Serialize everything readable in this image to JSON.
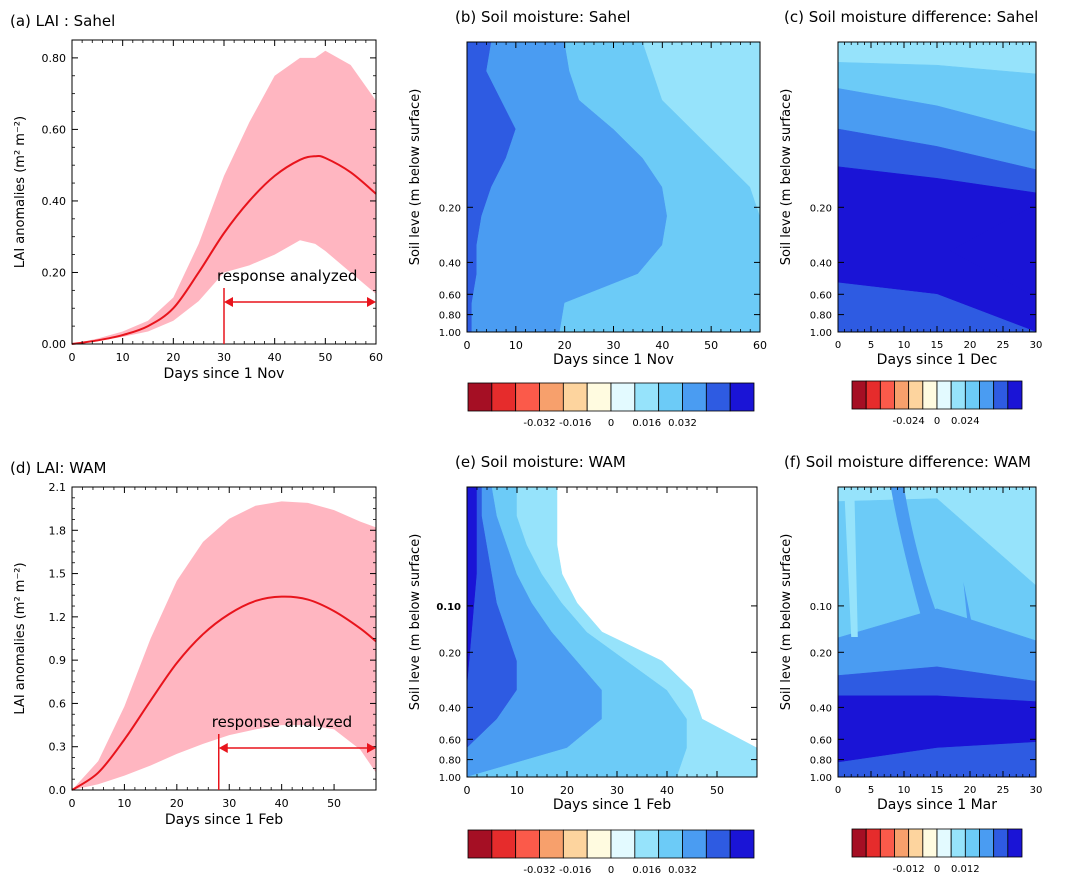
{
  "colors": {
    "band": "#ffb6c1",
    "mean_line": "#e8141c",
    "arrow": "#e8141c",
    "palette": [
      "#a50f24",
      "#e62c2c",
      "#fb5a4a",
      "#f7a06c",
      "#fdd49e",
      "#fffbe0",
      "#e3faff",
      "#96e3fb",
      "#6ccbf7",
      "#4a9cf2",
      "#2e5be2",
      "#1a14d6"
    ]
  },
  "chart_data": [
    {
      "id": "a",
      "type": "area",
      "title": "(a) LAI : Sahel",
      "xlabel": "Days since 1 Nov",
      "ylabel": "LAI anomalies (m² m⁻²)",
      "xlim": [
        0,
        60
      ],
      "ylim": [
        0,
        0.85
      ],
      "xticks": [
        0,
        10,
        20,
        30,
        40,
        50,
        60
      ],
      "xtick_labels": [
        "0",
        "10",
        "20",
        "30",
        "40",
        "50",
        "60"
      ],
      "yticks": [
        0,
        0.2,
        0.4,
        0.6,
        0.8
      ],
      "ytick_labels": [
        "0.00",
        "0.20",
        "0.40",
        "0.60",
        "0.80"
      ],
      "x": [
        0,
        5,
        10,
        15,
        20,
        25,
        30,
        35,
        40,
        45,
        48,
        50,
        55,
        60
      ],
      "mean": [
        0,
        0.01,
        0.025,
        0.05,
        0.1,
        0.2,
        0.31,
        0.4,
        0.47,
        0.515,
        0.525,
        0.52,
        0.48,
        0.42
      ],
      "lower": [
        0,
        0.008,
        0.02,
        0.035,
        0.065,
        0.12,
        0.2,
        0.22,
        0.25,
        0.29,
        0.28,
        0.26,
        0.2,
        0.14
      ],
      "upper": [
        0,
        0.015,
        0.035,
        0.065,
        0.13,
        0.28,
        0.47,
        0.62,
        0.75,
        0.8,
        0.8,
        0.82,
        0.78,
        0.68
      ],
      "annotation": "response analyzed",
      "response_range": [
        30,
        60
      ],
      "response_level": 0.075
    },
    {
      "id": "b",
      "type": "heatmap",
      "title": "(b) Soil moisture: Sahel",
      "xlabel": "Days since 1 Nov",
      "ylabel": "Soil leve (m below surface)",
      "xlim": [
        0,
        60
      ],
      "xticks": [
        0,
        10,
        20,
        30,
        40,
        50,
        60
      ],
      "xtick_labels": [
        "0",
        "10",
        "20",
        "30",
        "40",
        "50",
        "60"
      ],
      "ytick_labels": [
        "0.20",
        "0.40",
        "0.60",
        "0.80",
        "1.00"
      ],
      "depth_levels": [
        0.2,
        0.4,
        0.6,
        0.8,
        1.0
      ],
      "colorbar": {
        "tick_labels": [
          "-0.032",
          "-0.016",
          "0",
          "0.016",
          "0.032"
        ]
      },
      "bands": [
        {
          "level_index": 10,
          "lo_x": [
            0,
            0,
            0,
            0,
            0,
            0,
            0,
            0,
            0,
            0,
            0
          ],
          "hi_x": [
            5,
            4,
            7,
            10,
            8,
            5,
            3,
            2,
            2,
            1,
            1
          ]
        },
        {
          "level_index": 9,
          "lo_x": [
            5,
            4,
            7,
            10,
            8,
            5,
            3,
            2,
            2,
            1,
            1
          ],
          "hi_x": [
            20,
            21,
            23,
            30,
            36,
            40,
            41,
            40,
            35,
            20,
            19
          ]
        },
        {
          "level_index": 8,
          "lo_x": [
            20,
            21,
            23,
            30,
            36,
            40,
            41,
            40,
            35,
            20,
            19
          ],
          "hi_x": [
            36,
            38,
            40,
            46,
            52,
            58,
            60,
            60,
            60,
            60,
            60
          ]
        },
        {
          "level_index": 7,
          "lo_x": [
            36,
            38,
            40,
            46,
            52,
            58,
            60,
            60,
            60,
            60,
            60
          ],
          "hi_x": [
            60,
            60,
            60,
            60,
            60,
            60,
            60,
            60,
            60,
            60,
            60
          ]
        }
      ],
      "depth_fractions": [
        0,
        0.1,
        0.2,
        0.3,
        0.4,
        0.5,
        0.6,
        0.7,
        0.8,
        0.9,
        1.0
      ]
    },
    {
      "id": "c",
      "type": "heatmap",
      "title": "(c) Soil moisture difference: Sahel",
      "xlabel": "Days since 1 Dec",
      "ylabel": "Soil leve (m below surface)",
      "xlim": [
        0,
        30
      ],
      "xticks": [
        0,
        5,
        10,
        15,
        20,
        25,
        30
      ],
      "xtick_labels": [
        "0",
        "5",
        "10",
        "15",
        "20",
        "25",
        "30"
      ],
      "ytick_labels": [
        "0.20",
        "0.40",
        "0.60",
        "0.80",
        "1.00"
      ],
      "depth_levels": [
        0.2,
        0.4,
        0.6,
        0.8,
        1.0
      ],
      "colorbar": {
        "tick_labels": [
          "-0.024",
          "0",
          "0.024"
        ]
      },
      "row_bands": [
        {
          "level_index": 7,
          "top": [
            0,
            0,
            0
          ],
          "bottom": [
            0.07,
            0.08,
            0.11
          ]
        },
        {
          "level_index": 8,
          "top": [
            0.07,
            0.08,
            0.11
          ],
          "bottom": [
            0.16,
            0.22,
            0.31
          ]
        },
        {
          "level_index": 9,
          "top": [
            0.16,
            0.22,
            0.31
          ],
          "bottom": [
            0.3,
            0.36,
            0.44
          ]
        },
        {
          "level_index": 10,
          "top": [
            0.3,
            0.36,
            0.44
          ],
          "bottom": [
            0.43,
            0.47,
            0.52
          ]
        },
        {
          "level_index": 11,
          "top": [
            0.43,
            0.47,
            0.52
          ],
          "bottom": [
            0.83,
            0.87,
            1.0
          ]
        },
        {
          "level_index": 10,
          "top": [
            0.83,
            0.87,
            1.0
          ],
          "bottom": [
            1.0,
            1.0,
            1.0
          ]
        }
      ],
      "wedge": {
        "level_index": 11,
        "x_start": 17,
        "x_end": 30,
        "center": 0.72,
        "half_width": 0.16
      }
    },
    {
      "id": "d",
      "type": "area",
      "title": "(d) LAI: WAM",
      "xlabel": "Days since 1 Feb",
      "ylabel": "LAI anomalies (m² m⁻²)",
      "xlim": [
        0,
        58
      ],
      "ylim": [
        0,
        2.1
      ],
      "xticks": [
        0,
        10,
        20,
        30,
        40,
        50
      ],
      "xtick_labels": [
        "0",
        "10",
        "20",
        "30",
        "40",
        "50"
      ],
      "yticks": [
        0,
        0.3,
        0.6,
        0.9,
        1.2,
        1.5,
        1.8,
        2.1
      ],
      "ytick_labels": [
        "0.0",
        "0.3",
        "0.6",
        "0.9",
        "1.2",
        "1.5",
        "1.8",
        "2.1"
      ],
      "x": [
        0,
        5,
        10,
        15,
        20,
        25,
        30,
        35,
        40,
        45,
        50,
        55,
        58
      ],
      "mean": [
        0,
        0.12,
        0.35,
        0.62,
        0.88,
        1.08,
        1.22,
        1.31,
        1.34,
        1.32,
        1.24,
        1.12,
        1.03
      ],
      "lower": [
        0,
        0.04,
        0.1,
        0.17,
        0.25,
        0.32,
        0.38,
        0.42,
        0.45,
        0.45,
        0.42,
        0.28,
        0.12
      ],
      "upper": [
        0,
        0.2,
        0.58,
        1.05,
        1.45,
        1.72,
        1.88,
        1.97,
        2.0,
        1.99,
        1.94,
        1.86,
        1.82
      ],
      "annotation": "response analyzed",
      "response_range": [
        28,
        58
      ],
      "response_level": 0.045
    },
    {
      "id": "e",
      "type": "heatmap",
      "title": "(e) Soil moisture: WAM",
      "xlabel": "Days since 1 Feb",
      "ylabel": "Soil leve (m below surface)",
      "xlim": [
        0,
        58
      ],
      "xticks": [
        0,
        10,
        20,
        30,
        40,
        50
      ],
      "xtick_labels": [
        "0",
        "10",
        "20",
        "30",
        "40",
        "50"
      ],
      "ytick_labels": [
        "0.10",
        "0.20",
        "0.40",
        "0.60",
        "0.80",
        "1.00"
      ],
      "depth_levels": [
        0.1,
        0.2,
        0.4,
        0.6,
        0.8,
        1.0
      ],
      "colorbar": {
        "tick_labels": [
          "-0.032",
          "-0.016",
          "0",
          "0.016",
          "0.032"
        ]
      },
      "bands": [
        {
          "level_index": 11,
          "lo_x": [
            0,
            0,
            0,
            0,
            0,
            0,
            0,
            0,
            0,
            0,
            0
          ],
          "hi_x": [
            2,
            2,
            2,
            2,
            1.5,
            1,
            0.5,
            0,
            0,
            0,
            0
          ]
        },
        {
          "level_index": 10,
          "lo_x": [
            2,
            2,
            2,
            2,
            1.5,
            1,
            0.5,
            0,
            0,
            0,
            0
          ],
          "hi_x": [
            3,
            3,
            4,
            5,
            6,
            8,
            10,
            10,
            6,
            0,
            0
          ]
        },
        {
          "level_index": 9,
          "lo_x": [
            3,
            3,
            4,
            5,
            6,
            8,
            10,
            10,
            6,
            0,
            0
          ],
          "hi_x": [
            5,
            6,
            8,
            10,
            13,
            17,
            22,
            27,
            27,
            20,
            0
          ]
        },
        {
          "level_index": 8,
          "lo_x": [
            5,
            6,
            8,
            10,
            13,
            17,
            22,
            27,
            27,
            20,
            0
          ],
          "hi_x": [
            10,
            10,
            12,
            15,
            19,
            24,
            32,
            40,
            44,
            44,
            42
          ]
        },
        {
          "level_index": 7,
          "lo_x": [
            10,
            10,
            12,
            15,
            19,
            24,
            32,
            40,
            44,
            44,
            42
          ],
          "hi_x": [
            18,
            18,
            18,
            19,
            22,
            27,
            39,
            45,
            47,
            58,
            58
          ]
        }
      ],
      "depth_fractions": [
        0,
        0.1,
        0.2,
        0.3,
        0.4,
        0.5,
        0.6,
        0.7,
        0.8,
        0.9,
        1.0
      ]
    },
    {
      "id": "f",
      "type": "heatmap",
      "title": "(f) Soil moisture difference: WAM",
      "xlabel": "Days since 1 Mar",
      "ylabel": "Soil leve (m below surface)",
      "xlim": [
        0,
        30
      ],
      "xticks": [
        0,
        5,
        10,
        15,
        20,
        25,
        30
      ],
      "xtick_labels": [
        "0",
        "5",
        "10",
        "15",
        "20",
        "25",
        "30"
      ],
      "ytick_labels": [
        "0.10",
        "0.20",
        "0.40",
        "0.60",
        "0.80",
        "1.00"
      ],
      "depth_levels": [
        0.1,
        0.2,
        0.4,
        0.6,
        0.8,
        1.0
      ],
      "colorbar": {
        "tick_labels": [
          "-0.012",
          "0",
          "0.012"
        ]
      },
      "row_bands": [
        {
          "level_index": 7,
          "top": [
            0,
            0,
            0
          ],
          "bottom": [
            0.05,
            0.04,
            0.34
          ]
        },
        {
          "level_index": 8,
          "top": [
            0.05,
            0.04,
            0.34
          ],
          "bottom": [
            0.52,
            0.42,
            0.53
          ]
        },
        {
          "level_index": 9,
          "top": [
            0.52,
            0.42,
            0.53
          ],
          "bottom": [
            0.65,
            0.62,
            0.67
          ]
        },
        {
          "level_index": 10,
          "top": [
            0.65,
            0.62,
            0.67
          ],
          "bottom": [
            0.72,
            0.72,
            0.74
          ]
        },
        {
          "level_index": 11,
          "top": [
            0.72,
            0.72,
            0.74
          ],
          "bottom": [
            0.95,
            0.9,
            0.88
          ]
        },
        {
          "level_index": 10,
          "top": [
            0.95,
            0.9,
            0.88
          ],
          "bottom": [
            1.0,
            1.0,
            1.0
          ]
        }
      ]
    }
  ]
}
